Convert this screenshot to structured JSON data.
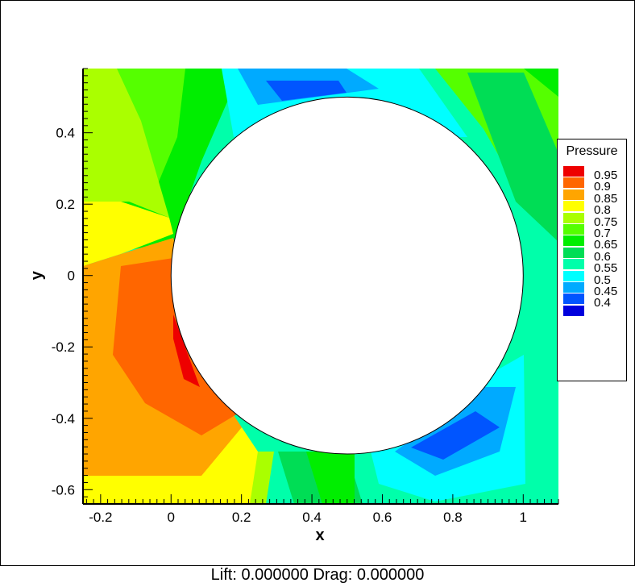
{
  "chart_data": {
    "type": "heatmap",
    "subtype": "filled-contour",
    "xlabel": "x",
    "ylabel": "y",
    "xlim": [
      -0.25,
      1.1
    ],
    "ylim": [
      -0.64,
      0.58
    ],
    "xticks": [
      -0.2,
      0,
      0.2,
      0.4,
      0.6,
      0.8,
      1
    ],
    "yticks": [
      -0.6,
      -0.4,
      -0.2,
      0,
      0.2,
      0.4
    ],
    "xtick_labels": [
      "-0.2",
      "0",
      "0.2",
      "0.4",
      "0.6",
      "0.8",
      "1"
    ],
    "ytick_labels": [
      "-0.6",
      "-0.4",
      "-0.2",
      "0",
      "0.2",
      "0.4"
    ],
    "grid": false,
    "obstacle": {
      "shape": "circle",
      "center": [
        0.5,
        0
      ],
      "radius": 0.5
    },
    "legend": {
      "title": "Pressure",
      "placement": "right",
      "levels": [
        {
          "label": "0.95",
          "color": "#ee0000"
        },
        {
          "label": "0.9",
          "color": "#ff6600"
        },
        {
          "label": "0.85",
          "color": "#ffa500"
        },
        {
          "label": "0.8",
          "color": "#ffff00"
        },
        {
          "label": "0.75",
          "color": "#aaff00"
        },
        {
          "label": "0.7",
          "color": "#55ff00"
        },
        {
          "label": "0.65",
          "color": "#00ee00"
        },
        {
          "label": "0.6",
          "color": "#00dd55"
        },
        {
          "label": "0.55",
          "color": "#00ffaa"
        },
        {
          "label": "0.5",
          "color": "#00ffff"
        },
        {
          "label": "0.45",
          "color": "#00aaff"
        },
        {
          "label": "0.4",
          "color": "#0055ff"
        },
        {
          "label": "",
          "color": "#0000dd"
        }
      ]
    }
  },
  "caption": "Lift: 0.000000 Drag: 0.000000"
}
